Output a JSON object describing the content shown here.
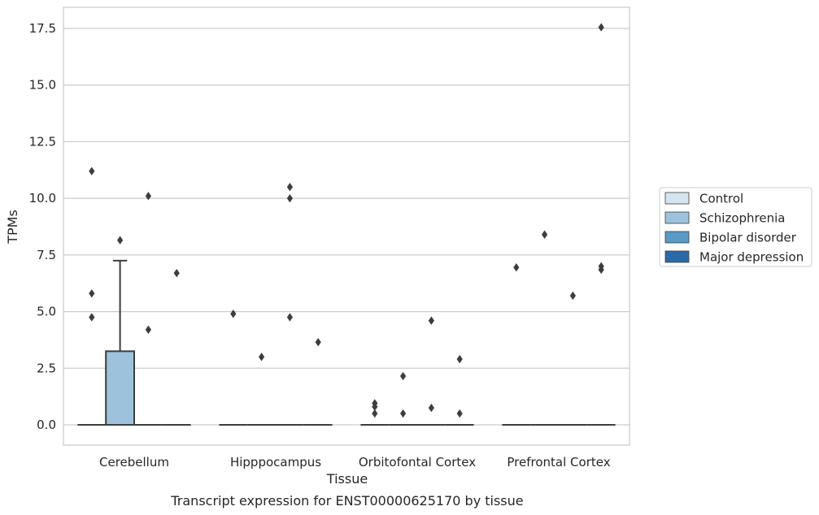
{
  "chart_data": {
    "type": "box",
    "caption": "Transcript expression for ENST00000625170 by tissue",
    "xlabel": "Tissue",
    "ylabel": "TPMs",
    "ylim": [
      -0.85,
      18.4
    ],
    "yticks": [
      "0.0",
      "2.5",
      "5.0",
      "7.5",
      "10.0",
      "12.5",
      "15.0",
      "17.5"
    ],
    "ytick_values": [
      0,
      2.5,
      5,
      7.5,
      10,
      12.5,
      15,
      17.5
    ],
    "grid": "horizontal",
    "legend_position": "right",
    "categories": [
      "Cerebellum",
      "Hipppocampus",
      "Orbitofontal Cortex",
      "Prefrontal Cortex"
    ],
    "series": [
      {
        "name": "Control",
        "color": "#d6e4f1",
        "boxes": [
          {
            "q1": 0,
            "median": 0,
            "q3": 0,
            "whisker_low": 0,
            "whisker_high": 0,
            "outliers": [
              11.2,
              5.8,
              4.75
            ]
          },
          {
            "q1": 0,
            "median": 0,
            "q3": 0,
            "whisker_low": 0,
            "whisker_high": 0,
            "outliers": [
              4.9
            ]
          },
          {
            "q1": 0,
            "median": 0,
            "q3": 0,
            "whisker_low": 0,
            "whisker_high": 0,
            "outliers": [
              0.95,
              0.8,
              0.5
            ]
          },
          {
            "q1": 0,
            "median": 0,
            "q3": 0,
            "whisker_low": 0,
            "whisker_high": 0,
            "outliers": [
              6.95
            ]
          }
        ]
      },
      {
        "name": "Schizophrenia",
        "color": "#9cc3db",
        "boxes": [
          {
            "q1": 0,
            "median": 0,
            "q3": 3.25,
            "whisker_low": 0,
            "whisker_high": 7.25,
            "outliers": [
              8.15
            ]
          },
          {
            "q1": 0,
            "median": 0,
            "q3": 0,
            "whisker_low": 0,
            "whisker_high": 0,
            "outliers": [
              3.0
            ]
          },
          {
            "q1": 0,
            "median": 0,
            "q3": 0,
            "whisker_low": 0,
            "whisker_high": 0,
            "outliers": [
              2.15,
              0.5
            ]
          },
          {
            "q1": 0,
            "median": 0,
            "q3": 0,
            "whisker_low": 0,
            "whisker_high": 0,
            "outliers": [
              8.4
            ]
          }
        ]
      },
      {
        "name": "Bipolar disorder",
        "color": "#5a9ac6",
        "boxes": [
          {
            "q1": 0,
            "median": 0,
            "q3": 0,
            "whisker_low": 0,
            "whisker_high": 0,
            "outliers": [
              10.1,
              4.2
            ]
          },
          {
            "q1": 0,
            "median": 0,
            "q3": 0,
            "whisker_low": 0,
            "whisker_high": 0,
            "outliers": [
              10.5,
              10.0,
              4.75
            ]
          },
          {
            "q1": 0,
            "median": 0,
            "q3": 0,
            "whisker_low": 0,
            "whisker_high": 0,
            "outliers": [
              4.6,
              0.75
            ]
          },
          {
            "q1": 0,
            "median": 0,
            "q3": 0,
            "whisker_low": 0,
            "whisker_high": 0,
            "outliers": [
              5.7
            ]
          }
        ]
      },
      {
        "name": "Major depression",
        "color": "#2a69a9",
        "boxes": [
          {
            "q1": 0,
            "median": 0,
            "q3": 0,
            "whisker_low": 0,
            "whisker_high": 0,
            "outliers": [
              6.7
            ]
          },
          {
            "q1": 0,
            "median": 0,
            "q3": 0,
            "whisker_low": 0,
            "whisker_high": 0,
            "outliers": [
              3.65
            ]
          },
          {
            "q1": 0,
            "median": 0,
            "q3": 0,
            "whisker_low": 0,
            "whisker_high": 0,
            "outliers": [
              2.9,
              0.5
            ]
          },
          {
            "q1": 0,
            "median": 0,
            "q3": 0,
            "whisker_low": 0,
            "whisker_high": 0,
            "outliers": [
              17.55,
              7.0,
              6.85
            ]
          }
        ]
      }
    ]
  }
}
